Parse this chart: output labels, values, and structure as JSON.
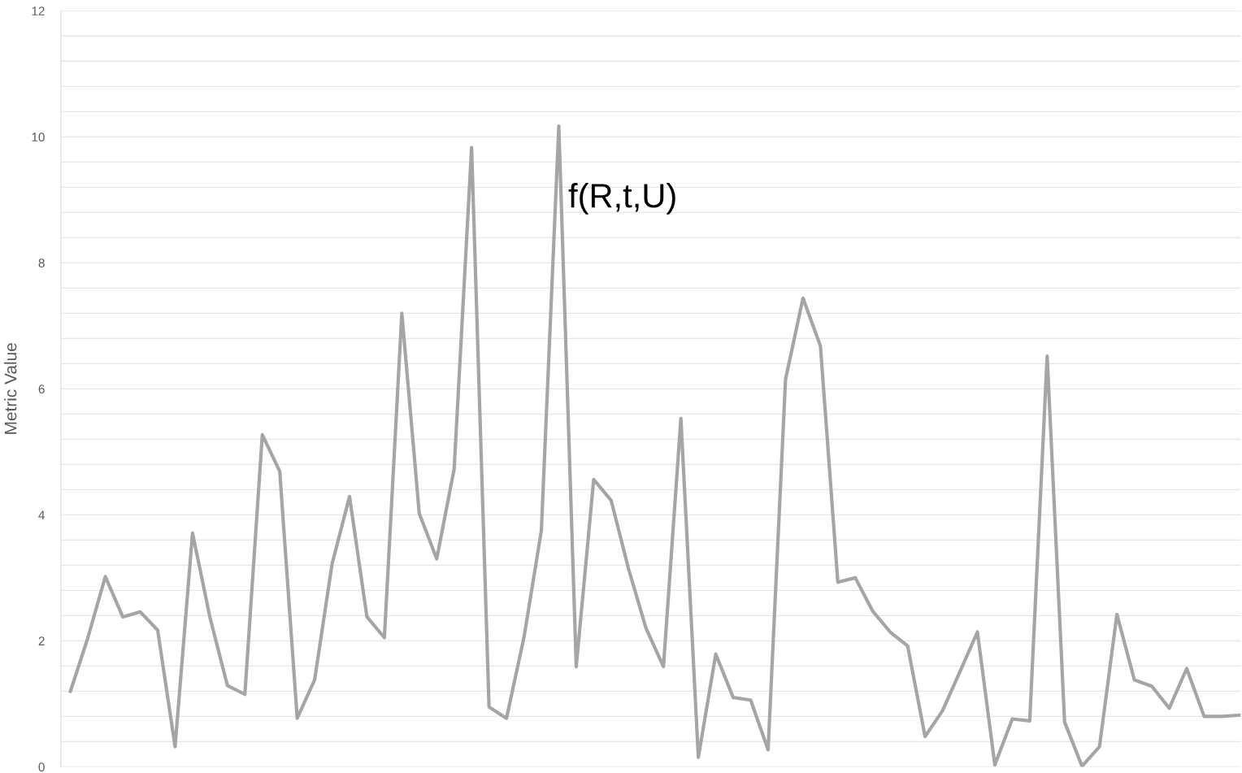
{
  "chart_data": {
    "type": "line",
    "ylabel": "Metric Value",
    "annotations": [
      "f(R,t,U)"
    ],
    "categories": [
      null,
      null,
      null,
      null,
      null,
      null,
      null,
      null,
      null,
      null,
      null,
      null,
      null,
      null,
      null,
      null,
      null,
      null,
      null,
      null,
      null,
      null,
      null,
      null,
      null,
      null,
      null,
      null,
      null,
      null,
      null,
      null,
      null,
      null,
      null,
      null,
      null,
      null,
      null,
      null,
      null,
      null,
      null,
      null,
      null,
      null,
      null,
      null,
      null,
      null,
      null,
      null,
      null,
      null,
      null,
      null,
      null,
      null,
      null,
      null,
      null,
      null,
      null,
      null,
      null,
      null,
      null,
      null
    ],
    "series": [
      {
        "color": "#a5a5a5",
        "values": [
          1.2,
          2.05,
          3.02,
          2.38,
          2.46,
          2.17,
          0.32,
          3.71,
          2.37,
          1.29,
          1.15,
          5.27,
          4.69,
          0.77,
          1.38,
          3.22,
          4.29,
          2.38,
          2.05,
          7.2,
          4.02,
          3.3,
          4.73,
          9.83,
          0.95,
          0.77,
          2.05,
          3.75,
          10.17,
          1.59,
          4.56,
          4.23,
          3.14,
          2.2,
          1.59,
          5.53,
          0.15,
          1.79,
          1.1,
          1.06,
          0.27,
          6.15,
          7.44,
          6.68,
          2.93,
          3.0,
          2.47,
          2.14,
          1.92,
          0.48,
          0.89,
          1.51,
          2.14,
          0.03,
          0.76,
          0.73,
          6.52,
          0.71,
          0.01,
          0.32,
          2.42,
          1.38,
          1.28,
          0.93,
          1.56,
          0.8,
          0.8,
          0.82
        ]
      }
    ],
    "ylim": [
      0,
      12
    ],
    "yticks": [
      0,
      {
        "value": 0.4,
        "label": null
      },
      {
        "value": 0.8,
        "label": null
      },
      {
        "value": 1.2,
        "label": null
      },
      {
        "value": 1.6,
        "label": null
      },
      2,
      {
        "value": 2.4,
        "label": null
      },
      {
        "value": 2.8,
        "label": null
      },
      {
        "value": 3.2,
        "label": null
      },
      {
        "value": 3.6,
        "label": null
      },
      4,
      {
        "value": 4.4,
        "label": null
      },
      {
        "value": 4.8,
        "label": null
      },
      {
        "value": 5.2,
        "label": null
      },
      {
        "value": 5.6,
        "label": null
      },
      6,
      {
        "value": 6.4,
        "label": null
      },
      {
        "value": 6.8,
        "label": null
      },
      {
        "value": 7.2,
        "label": null
      },
      {
        "value": 7.6,
        "label": null
      },
      8,
      {
        "value": 8.4,
        "label": null
      },
      {
        "value": 8.8,
        "label": null
      },
      {
        "value": 9.2,
        "label": null
      },
      {
        "value": 9.6,
        "label": null
      },
      10,
      {
        "value": 10.4,
        "label": null
      },
      {
        "value": 10.8,
        "label": null
      },
      {
        "value": 11.2,
        "label": null
      },
      {
        "value": 11.6,
        "label": null
      },
      12
    ],
    "grid": "y",
    "marker": "none",
    "line_style": "solid",
    "legend": false
  }
}
